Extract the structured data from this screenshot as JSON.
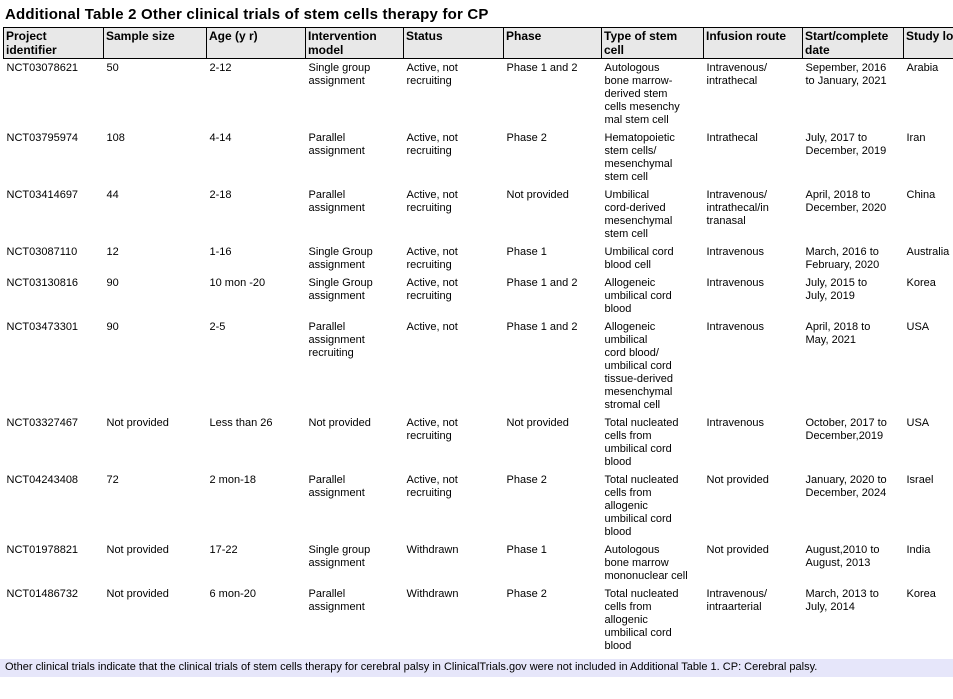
{
  "title": "Additional Table 2 Other clinical trials of stem cells therapy for CP",
  "footnote": "Other clinical trials indicate that the clinical trials of stem cells therapy for cerebral palsy in ClinicalTrials.gov were not included in Additional Table 1. CP: Cerebral palsy.",
  "table": {
    "columns": [
      "Project\nidentifier",
      "Sample size",
      "Age (y r)",
      "Intervention\nmodel",
      "Status",
      "Phase",
      "Type of stem\ncell",
      "Infusion route",
      "Start/complete\ndate",
      "Study location"
    ],
    "rows": [
      [
        "NCT03078621",
        "50",
        "2-12",
        "Single group\nassignment",
        "Active, not\nrecruiting",
        "Phase 1 and 2",
        "Autologous\nbone marrow-\nderived stem\ncells mesenchy\nmal stem cell",
        "Intravenous/\nintrathecal",
        "Sepember, 2016\nto January, 2021",
        "Arabia"
      ],
      [
        "NCT03795974",
        "108",
        "4-14",
        "Parallel\nassignment",
        "Active, not\nrecruiting",
        "Phase 2",
        "Hematopoietic\nstem cells/\nmesenchymal\nstem cell",
        "Intrathecal",
        "July, 2017 to\nDecember, 2019",
        "Iran"
      ],
      [
        "NCT03414697",
        "44",
        "2-18",
        "Parallel\nassignment",
        "Active, not\nrecruiting",
        "Not provided",
        "Umbilical\ncord-derived\nmesenchymal\nstem cell",
        "Intravenous/\nintrathecal/in\ntranasal",
        "April, 2018 to\nDecember, 2020",
        "China"
      ],
      [
        "NCT03087110",
        "12",
        "1-16",
        "Single Group\nassignment",
        "Active, not\nrecruiting",
        "Phase 1",
        "Umbilical cord\nblood cell",
        "Intravenous",
        "March, 2016 to\nFebruary, 2020",
        "Australia"
      ],
      [
        "NCT03130816",
        "90",
        "10 mon -20",
        "Single Group\nassignment",
        "Active, not\nrecruiting",
        "Phase 1 and 2",
        "Allogeneic\numbilical cord\nblood",
        "Intravenous",
        "July, 2015 to\nJuly, 2019",
        "Korea"
      ],
      [
        "NCT03473301",
        "90",
        "2-5",
        "Parallel\nassignment\nrecruiting",
        "Active, not",
        "Phase 1 and 2",
        "Allogeneic\numbilical\ncord blood/\numbilical cord\ntissue-derived\nmesenchymal\nstromal cell",
        "Intravenous",
        "April, 2018 to\nMay, 2021",
        "USA"
      ],
      [
        "NCT03327467",
        "Not provided",
        "Less than 26",
        "Not provided",
        "Active, not\nrecruiting",
        "Not provided",
        "Total nucleated\ncells from\numbilical cord\nblood",
        "Intravenous",
        "October, 2017 to\nDecember,2019",
        "USA"
      ],
      [
        "NCT04243408",
        "72",
        "2 mon-18",
        "Parallel\nassignment",
        "Active, not\nrecruiting",
        "Phase 2",
        "Total nucleated\ncells from\nallogenic\numbilical cord\nblood",
        "Not provided",
        "January, 2020 to\nDecember, 2024",
        "Israel"
      ],
      [
        "NCT01978821",
        "Not provided",
        "17-22",
        "Single group\nassignment",
        "Withdrawn",
        "Phase 1",
        "Autologous\nbone marrow\nmononuclear cell",
        "Not provided",
        "August,2010 to\nAugust, 2013",
        "India"
      ],
      [
        "NCT01486732",
        "Not provided",
        "6 mon-20",
        "Parallel\nassignment",
        "Withdrawn",
        "Phase 2",
        "Total nucleated\ncells from\nallogenic\numbilical cord\nblood",
        "Intravenous/\nintraarterial",
        "March, 2013 to\nJuly, 2014",
        "Korea"
      ]
    ]
  },
  "colors": {
    "header_bg": "#e8e8e8",
    "footnote_bg": "#e6e6fa",
    "border": "#000000",
    "text": "#000000"
  }
}
